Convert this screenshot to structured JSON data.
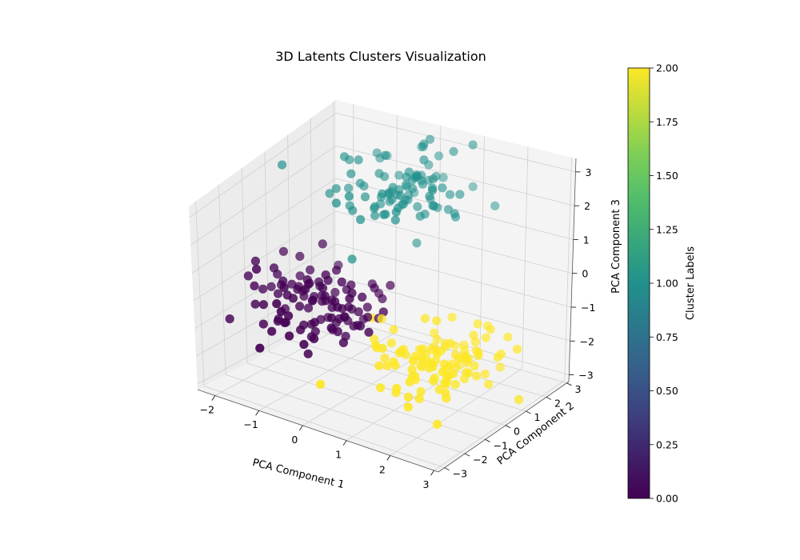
{
  "chart_data": {
    "type": "scatter",
    "projection": "3d",
    "title": "3D Latents Clusters Visualization",
    "xlabel": "PCA Component 1",
    "ylabel": "PCA Component 2",
    "zlabel": "PCA Component 3",
    "xlim": [
      -2.4,
      3.1
    ],
    "ylim": [
      -3.3,
      3.1
    ],
    "zlim": [
      -3.2,
      3.4
    ],
    "xticks": [
      -2,
      -1,
      0,
      1,
      2,
      3
    ],
    "yticks": [
      -3,
      -2,
      -1,
      0,
      1,
      2,
      3
    ],
    "zticks": [
      -3,
      -2,
      -1,
      0,
      1,
      2,
      3
    ],
    "xtick_labels": [
      "−2",
      "−1",
      "0",
      "1",
      "2",
      "3"
    ],
    "ytick_labels": [
      "−3",
      "−2",
      "−1",
      "0",
      "1",
      "2",
      "3"
    ],
    "ztick_labels": [
      "−3",
      "−2",
      "−1",
      "0",
      "1",
      "2",
      "3"
    ],
    "grid": true,
    "colormap": "viridis",
    "cluster_colors": [
      "#440154",
      "#21918c",
      "#fde725"
    ],
    "colorbar": {
      "label": "Cluster Labels",
      "range": [
        0,
        2
      ],
      "ticks": [
        0,
        0.25,
        0.5,
        0.75,
        1.0,
        1.25,
        1.5,
        1.75,
        2.0
      ],
      "tick_labels": [
        "0.00",
        "0.25",
        "0.50",
        "0.75",
        "1.00",
        "1.25",
        "1.50",
        "1.75",
        "2.00"
      ]
    },
    "clusters": [
      {
        "cluster": 0,
        "count": 110,
        "center": [
          -0.9,
          -0.8,
          -0.6
        ],
        "spread": [
          0.75,
          0.8,
          0.55
        ]
      },
      {
        "cluster": 1,
        "count": 95,
        "center": [
          0.0,
          1.6,
          2.1
        ],
        "spread": [
          0.65,
          0.8,
          0.5
        ]
      },
      {
        "cluster": 2,
        "count": 110,
        "center": [
          1.7,
          -0.6,
          -1.5
        ],
        "spread": [
          0.65,
          0.9,
          0.45
        ]
      }
    ]
  }
}
